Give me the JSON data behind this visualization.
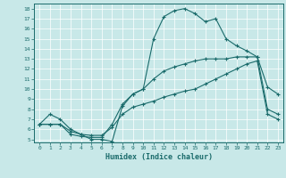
{
  "xlabel": "Humidex (Indice chaleur)",
  "bg_color": "#c8e8e8",
  "line_color": "#1a6b6b",
  "xlim": [
    -0.5,
    23.5
  ],
  "ylim": [
    4.7,
    18.5
  ],
  "yticks": [
    5,
    6,
    7,
    8,
    9,
    10,
    11,
    12,
    13,
    14,
    15,
    16,
    17,
    18
  ],
  "xticks": [
    0,
    1,
    2,
    3,
    4,
    5,
    6,
    7,
    8,
    9,
    10,
    11,
    12,
    13,
    14,
    15,
    16,
    17,
    18,
    19,
    20,
    21,
    22,
    23
  ],
  "curve1_x": [
    0,
    1,
    2,
    3,
    4,
    5,
    6,
    7,
    8,
    9,
    10,
    11,
    12,
    13,
    14,
    15,
    16,
    17,
    18,
    19,
    20,
    21,
    22,
    23
  ],
  "curve1_y": [
    6.5,
    7.5,
    7.0,
    6.0,
    5.5,
    5.0,
    5.0,
    4.8,
    8.3,
    9.5,
    10.0,
    15.0,
    17.2,
    17.8,
    18.0,
    17.5,
    16.7,
    17.0,
    15.0,
    14.3,
    13.8,
    13.2,
    10.2,
    9.5
  ],
  "curve2_x": [
    0,
    1,
    2,
    3,
    4,
    5,
    6,
    7,
    8,
    9,
    10,
    11,
    12,
    13,
    14,
    15,
    16,
    17,
    18,
    19,
    20,
    21,
    22,
    23
  ],
  "curve2_y": [
    6.5,
    6.5,
    6.5,
    5.5,
    5.3,
    5.2,
    5.2,
    6.5,
    8.5,
    9.5,
    10.0,
    11.0,
    11.8,
    12.2,
    12.5,
    12.8,
    13.0,
    13.0,
    13.0,
    13.2,
    13.2,
    13.2,
    8.0,
    7.5
  ],
  "curve3_x": [
    0,
    1,
    2,
    3,
    4,
    5,
    6,
    7,
    8,
    9,
    10,
    11,
    12,
    13,
    14,
    15,
    16,
    17,
    18,
    19,
    20,
    21,
    22,
    23
  ],
  "curve3_y": [
    6.5,
    6.5,
    6.5,
    5.8,
    5.5,
    5.4,
    5.4,
    6.2,
    7.5,
    8.2,
    8.5,
    8.8,
    9.2,
    9.5,
    9.8,
    10.0,
    10.5,
    11.0,
    11.5,
    12.0,
    12.5,
    12.8,
    7.5,
    7.0
  ],
  "xlabel_fontsize": 6,
  "tick_fontsize": 4.5,
  "lw": 0.8,
  "marker_size": 3,
  "grid_color": "#ffffff",
  "grid_lw": 0.5
}
